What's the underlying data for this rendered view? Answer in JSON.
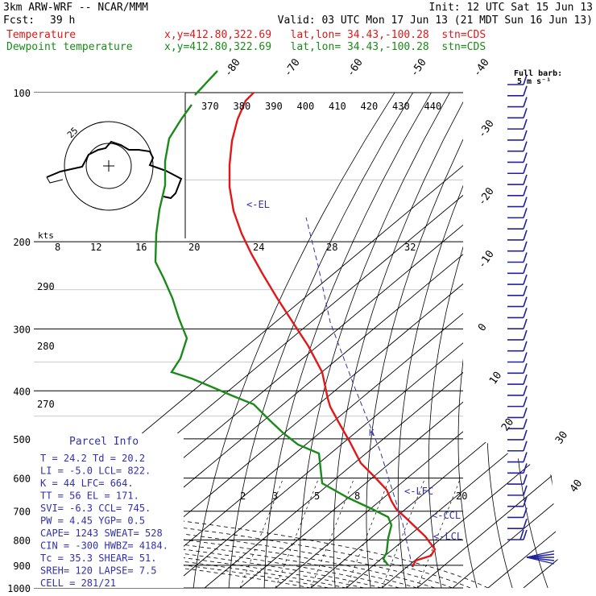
{
  "header": {
    "model": "3km ARW-WRF -- NCAR/MMM",
    "init": "Init: 12 UTC Sat 15 Jun 13",
    "fcst_label": "Fcst:",
    "fcst_value": "39 h",
    "valid": "Valid: 03 UTC Mon 17 Jun 13 (21 MDT Sun 16 Jun 13)",
    "temp_label": "Temperature",
    "temp_info": "x,y=412.80,322.69   lat,lon= 34.43,-100.28  stn=CDS",
    "dew_label": "Dewpoint temperature",
    "dew_info": "x,y=412.80,322.69   lat,lon= 34.43,-100.28  stn=CDS",
    "barb_note_1": "Full barb:",
    "barb_note_2": "5 m s⁻¹"
  },
  "colors": {
    "temperature": "#e01818",
    "dewpoint": "#1a8a1a",
    "annotations": "#3030b0",
    "barbs": "#2020a0",
    "grid": "#000000"
  },
  "parcel_info": {
    "title": "Parcel Info",
    "rows": [
      "T  =   24.2  Td =  20.2",
      "LI =   -5.0  LCL=  822.",
      "K  =     44  LFC=  664.",
      "TT =     56  EL =  171.",
      "SVI=   -6.3  CCL=  745.",
      "PW =   4.45  YGP=   0.5",
      "CAPE=  1243  SWEAT= 528",
      "CIN =  -300  HWBZ= 4184.",
      "Tc =   35.3  SHEAR=  51.",
      "SREH=   120  LAPSE=  7.5",
      "CELL = 281/21"
    ]
  },
  "hodograph_labels": {
    "ring": "25",
    "units": "kts"
  },
  "level_labels": [
    "<-EL",
    "<-LFC",
    "<-CCL",
    "<-LCL"
  ],
  "chart_data": {
    "type": "line",
    "pressure_axis_hPa": [
      "100",
      "200",
      "300",
      "400",
      "500",
      "600",
      "700",
      "800",
      "900",
      "1000"
    ],
    "isotherm_labels_C": [
      "-80",
      "-70",
      "-60",
      "-50",
      "-40",
      "-30",
      "-20",
      "-10",
      "0",
      "10",
      "20",
      "30",
      "40"
    ],
    "theta_labels_K": [
      "370",
      "380",
      "390",
      "400",
      "410",
      "420",
      "430",
      "440"
    ],
    "mixing_ratio_top_labels": [
      "8",
      "12",
      "16",
      "20",
      "24",
      "28",
      "32"
    ],
    "mixing_ratio_bottom_labels": [
      "2",
      "3",
      "5",
      "8",
      "20"
    ],
    "dry_adiabat_labels": [
      "290",
      "280",
      "270"
    ],
    "series": [
      {
        "name": "Temperature",
        "points_hPa_C": [
          [
            100,
            -57
          ],
          [
            130,
            -64
          ],
          [
            170,
            -66
          ],
          [
            200,
            -58
          ],
          [
            250,
            -46
          ],
          [
            300,
            -34
          ],
          [
            350,
            -22
          ],
          [
            400,
            -12
          ],
          [
            450,
            -7
          ],
          [
            500,
            -3
          ],
          [
            600,
            5
          ],
          [
            700,
            11
          ],
          [
            760,
            17
          ],
          [
            800,
            21
          ],
          [
            840,
            25
          ],
          [
            870,
            24
          ],
          [
            900,
            21
          ],
          [
            930,
            24
          ]
        ]
      },
      {
        "name": "Dewpoint temperature",
        "points_hPa_C": [
          [
            100,
            -92
          ],
          [
            130,
            -104
          ],
          [
            160,
            -104
          ],
          [
            200,
            -98
          ],
          [
            250,
            -86
          ],
          [
            280,
            -80
          ],
          [
            330,
            -75
          ],
          [
            380,
            -82
          ],
          [
            400,
            -60
          ],
          [
            450,
            -32
          ],
          [
            500,
            -20
          ],
          [
            550,
            -10
          ],
          [
            600,
            -7
          ],
          [
            650,
            -9
          ],
          [
            700,
            9
          ],
          [
            760,
            17
          ],
          [
            820,
            16
          ],
          [
            880,
            16
          ],
          [
            920,
            18
          ]
        ]
      }
    ],
    "wind_barbs_m_s": [
      5,
      5,
      5,
      5,
      5,
      5,
      5,
      5,
      5,
      5,
      5,
      5,
      5,
      5,
      5,
      5,
      5,
      5,
      5,
      5,
      5,
      5,
      5,
      5,
      5,
      5,
      5,
      5,
      5,
      5,
      5,
      5,
      5,
      5,
      5,
      5,
      5,
      5,
      5,
      5,
      5,
      10
    ]
  }
}
